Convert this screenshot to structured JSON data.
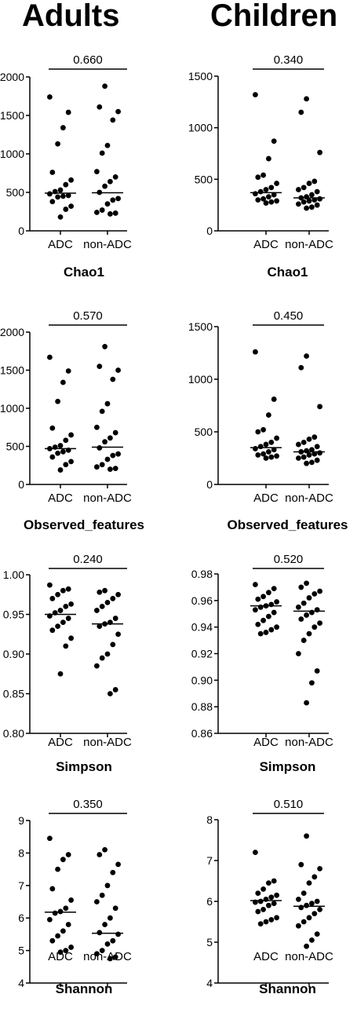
{
  "header": {
    "left_title": "Adults",
    "right_title": "Children"
  },
  "chart_data": [
    {
      "type": "scatter",
      "group": "Adults",
      "metric": "Chao1",
      "categories": [
        "ADC",
        "non-ADC"
      ],
      "pvalue": "0.660",
      "ylim": [
        0,
        2000
      ],
      "yticks": [
        0,
        500,
        1000,
        1500,
        2000
      ],
      "ytick_labels": [
        "0",
        "500",
        "1000",
        "1500",
        "2000"
      ],
      "medians": [
        490,
        495
      ],
      "series": [
        {
          "category": "ADC",
          "values": [
            1740,
            1540,
            1340,
            1130,
            760,
            660,
            600,
            530,
            510,
            480,
            460,
            450,
            440,
            380,
            320,
            280,
            180
          ]
        },
        {
          "category": "non-ADC",
          "values": [
            1880,
            1610,
            1550,
            1440,
            1110,
            1010,
            770,
            700,
            640,
            580,
            500,
            420,
            400,
            350,
            270,
            240,
            230,
            220
          ]
        }
      ]
    },
    {
      "type": "scatter",
      "group": "Children",
      "metric": "Chao1",
      "categories": [
        "ADC",
        "non-ADC"
      ],
      "pvalue": "0.340",
      "ylim": [
        0,
        1500
      ],
      "yticks": [
        0,
        500,
        1000,
        1500
      ],
      "ytick_labels": [
        "0",
        "500",
        "1000",
        "1500"
      ],
      "medians": [
        370,
        320
      ],
      "series": [
        {
          "category": "ADC",
          "values": [
            1320,
            870,
            700,
            540,
            520,
            460,
            420,
            400,
            380,
            360,
            350,
            330,
            310,
            300,
            290,
            280,
            270
          ]
        },
        {
          "category": "non-ADC",
          "values": [
            1280,
            1150,
            760,
            480,
            460,
            420,
            400,
            380,
            350,
            330,
            320,
            310,
            300,
            290,
            280,
            260,
            250,
            230,
            220
          ]
        }
      ]
    },
    {
      "type": "scatter",
      "group": "Adults",
      "metric": "Observed_features",
      "categories": [
        "ADC",
        "non-ADC"
      ],
      "pvalue": "0.570",
      "ylim": [
        0,
        2000
      ],
      "yticks": [
        0,
        500,
        1000,
        1500,
        2000
      ],
      "ytick_labels": [
        "0",
        "500",
        "1000",
        "1500",
        "2000"
      ],
      "medians": [
        470,
        490
      ],
      "series": [
        {
          "category": "ADC",
          "values": [
            1670,
            1490,
            1340,
            1090,
            740,
            650,
            580,
            510,
            490,
            470,
            450,
            430,
            410,
            360,
            300,
            260,
            190
          ]
        },
        {
          "category": "non-ADC",
          "values": [
            1810,
            1550,
            1500,
            1380,
            1060,
            960,
            750,
            680,
            610,
            560,
            480,
            400,
            380,
            330,
            260,
            230,
            210,
            200
          ]
        }
      ]
    },
    {
      "type": "scatter",
      "group": "Children",
      "metric": "Observed_features",
      "categories": [
        "ADC",
        "non-ADC"
      ],
      "pvalue": "0.450",
      "ylim": [
        0,
        1500
      ],
      "yticks": [
        0,
        500,
        1000,
        1500
      ],
      "ytick_labels": [
        "0",
        "500",
        "1000",
        "1500"
      ],
      "medians": [
        350,
        310
      ],
      "series": [
        {
          "category": "ADC",
          "values": [
            1260,
            810,
            660,
            520,
            500,
            440,
            400,
            380,
            360,
            340,
            330,
            310,
            290,
            280,
            270,
            260,
            250
          ]
        },
        {
          "category": "non-ADC",
          "values": [
            1220,
            1110,
            740,
            450,
            430,
            400,
            380,
            360,
            330,
            320,
            310,
            300,
            290,
            280,
            260,
            250,
            230,
            210,
            200
          ]
        }
      ]
    },
    {
      "type": "scatter",
      "group": "Adults",
      "metric": "Simpson",
      "categories": [
        "ADC",
        "non-ADC"
      ],
      "pvalue": "0.240",
      "ylim": [
        0.8,
        1.0
      ],
      "yticks": [
        0.8,
        0.85,
        0.9,
        0.95,
        1.0
      ],
      "ytick_labels": [
        "0.80",
        "0.85",
        "0.90",
        "0.95",
        "1.00"
      ],
      "medians": [
        0.95,
        0.938
      ],
      "series": [
        {
          "category": "ADC",
          "values": [
            0.987,
            0.982,
            0.98,
            0.975,
            0.97,
            0.963,
            0.96,
            0.955,
            0.952,
            0.948,
            0.945,
            0.94,
            0.935,
            0.93,
            0.92,
            0.91,
            0.875
          ]
        },
        {
          "category": "non-ADC",
          "values": [
            0.98,
            0.978,
            0.975,
            0.97,
            0.965,
            0.96,
            0.955,
            0.945,
            0.94,
            0.938,
            0.935,
            0.925,
            0.912,
            0.9,
            0.895,
            0.885,
            0.855,
            0.85
          ]
        }
      ]
    },
    {
      "type": "scatter",
      "group": "Children",
      "metric": "Simpson",
      "categories": [
        "ADC",
        "non-ADC"
      ],
      "pvalue": "0.520",
      "ylim": [
        0.86,
        0.98
      ],
      "yticks": [
        0.86,
        0.88,
        0.9,
        0.92,
        0.94,
        0.96,
        0.98
      ],
      "ytick_labels": [
        "0.86",
        "0.88",
        "0.90",
        "0.92",
        "0.94",
        "0.96",
        "0.98"
      ],
      "medians": [
        0.956,
        0.952
      ],
      "series": [
        {
          "category": "ADC",
          "values": [
            0.972,
            0.969,
            0.966,
            0.963,
            0.961,
            0.959,
            0.957,
            0.956,
            0.955,
            0.953,
            0.951,
            0.948,
            0.945,
            0.942,
            0.94,
            0.938,
            0.936,
            0.935
          ]
        },
        {
          "category": "non-ADC",
          "values": [
            0.973,
            0.97,
            0.967,
            0.965,
            0.962,
            0.958,
            0.955,
            0.953,
            0.951,
            0.949,
            0.946,
            0.943,
            0.94,
            0.935,
            0.93,
            0.92,
            0.907,
            0.898,
            0.883
          ]
        }
      ]
    },
    {
      "type": "scatter",
      "group": "Adults",
      "metric": "Shannon",
      "categories": [
        "ADC",
        "non-ADC"
      ],
      "pvalue": "0.350",
      "ylim": [
        4,
        9
      ],
      "yticks": [
        4,
        5,
        6,
        7,
        8,
        9
      ],
      "ytick_labels": [
        "4",
        "5",
        "6",
        "7",
        "8",
        "9"
      ],
      "medians": [
        6.18,
        5.53
      ],
      "series": [
        {
          "category": "ADC",
          "values": [
            8.45,
            7.95,
            7.8,
            7.5,
            6.9,
            6.55,
            6.3,
            6.2,
            6.15,
            5.95,
            5.8,
            5.6,
            5.45,
            5.3,
            5.1,
            5.0,
            4.95
          ]
        },
        {
          "category": "non-ADC",
          "values": [
            8.1,
            7.95,
            7.65,
            7.4,
            7.0,
            6.7,
            6.5,
            6.3,
            6.0,
            5.8,
            5.55,
            5.5,
            5.3,
            5.2,
            5.0,
            4.9,
            4.8,
            4.75
          ]
        }
      ]
    },
    {
      "type": "scatter",
      "group": "Children",
      "metric": "Shannon",
      "categories": [
        "ADC",
        "non-ADC"
      ],
      "pvalue": "0.510",
      "ylim": [
        4,
        8
      ],
      "yticks": [
        4,
        5,
        6,
        7,
        8
      ],
      "ytick_labels": [
        "4",
        "5",
        "6",
        "7",
        "8"
      ],
      "medians": [
        6.02,
        5.88
      ],
      "series": [
        {
          "category": "ADC",
          "values": [
            7.2,
            6.5,
            6.45,
            6.3,
            6.2,
            6.15,
            6.1,
            6.05,
            6.0,
            5.98,
            5.95,
            5.9,
            5.8,
            5.75,
            5.6,
            5.55,
            5.5,
            5.45
          ]
        },
        {
          "category": "non-ADC",
          "values": [
            7.6,
            6.9,
            6.8,
            6.6,
            6.45,
            6.2,
            6.05,
            6.0,
            5.95,
            5.9,
            5.85,
            5.8,
            5.7,
            5.6,
            5.5,
            5.4,
            5.2,
            5.05,
            4.9
          ]
        }
      ]
    }
  ]
}
